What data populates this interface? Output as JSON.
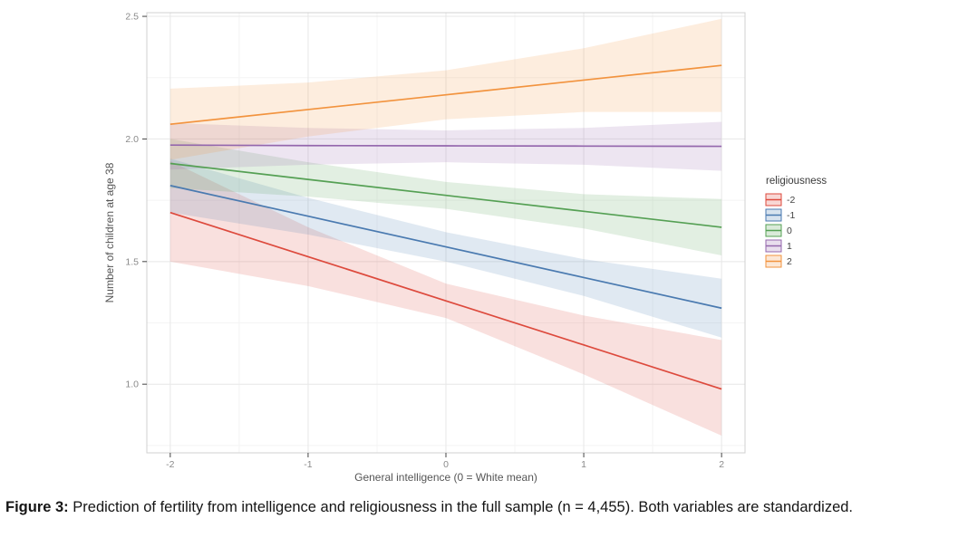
{
  "figure": {
    "caption_label": "Figure 3:",
    "caption_text": " Prediction of fertility from intelligence and religiousness in the full sample (n = 4,455). Both variables are standardized."
  },
  "chart_data": {
    "type": "line",
    "title": "",
    "xlabel": "General intelligence (0 = White mean)",
    "ylabel": "Number of children at age 38",
    "xlim": [
      -2.17,
      2.17
    ],
    "ylim": [
      0.72,
      2.515
    ],
    "xticks": [
      -2,
      -1,
      0,
      1,
      2
    ],
    "x_tick_labels": [
      "-2",
      "-1",
      "0",
      "1",
      "2"
    ],
    "yticks": [
      1.0,
      1.5,
      2.0,
      2.5
    ],
    "y_tick_labels": [
      "1.0",
      "1.5",
      "2.0",
      "2.5"
    ],
    "grid": true,
    "legend": {
      "title": "religiousness",
      "position": "right"
    },
    "band_opacity": 0.17,
    "x": [
      -2,
      -1,
      0,
      1,
      2
    ],
    "series": [
      {
        "name": "-2",
        "color": "#dd4a3d",
        "y": [
          1.7,
          1.52,
          1.34,
          1.16,
          0.98
        ],
        "lower": [
          1.5,
          1.4,
          1.27,
          1.04,
          0.79
        ],
        "upper": [
          1.91,
          1.64,
          1.41,
          1.28,
          1.18
        ]
      },
      {
        "name": "-1",
        "color": "#4a7ab0",
        "y": [
          1.81,
          1.685,
          1.56,
          1.435,
          1.31
        ],
        "lower": [
          1.7,
          1.61,
          1.5,
          1.36,
          1.19
        ],
        "upper": [
          1.92,
          1.76,
          1.62,
          1.51,
          1.43
        ]
      },
      {
        "name": "0",
        "color": "#55a054",
        "y": [
          1.9,
          1.835,
          1.77,
          1.705,
          1.64
        ],
        "lower": [
          1.8,
          1.765,
          1.715,
          1.635,
          1.525
        ],
        "upper": [
          2.0,
          1.905,
          1.825,
          1.775,
          1.755
        ]
      },
      {
        "name": "1",
        "color": "#9467ad",
        "y": [
          1.975,
          1.973,
          1.972,
          1.971,
          1.97
        ],
        "lower": [
          1.875,
          1.895,
          1.905,
          1.895,
          1.87
        ],
        "upper": [
          2.065,
          2.045,
          2.035,
          2.045,
          2.07
        ]
      },
      {
        "name": "2",
        "color": "#f2933e",
        "y": [
          2.06,
          2.12,
          2.18,
          2.24,
          2.3
        ],
        "lower": [
          1.915,
          2.01,
          2.08,
          2.11,
          2.11
        ],
        "upper": [
          2.205,
          2.23,
          2.28,
          2.37,
          2.49
        ]
      }
    ]
  }
}
